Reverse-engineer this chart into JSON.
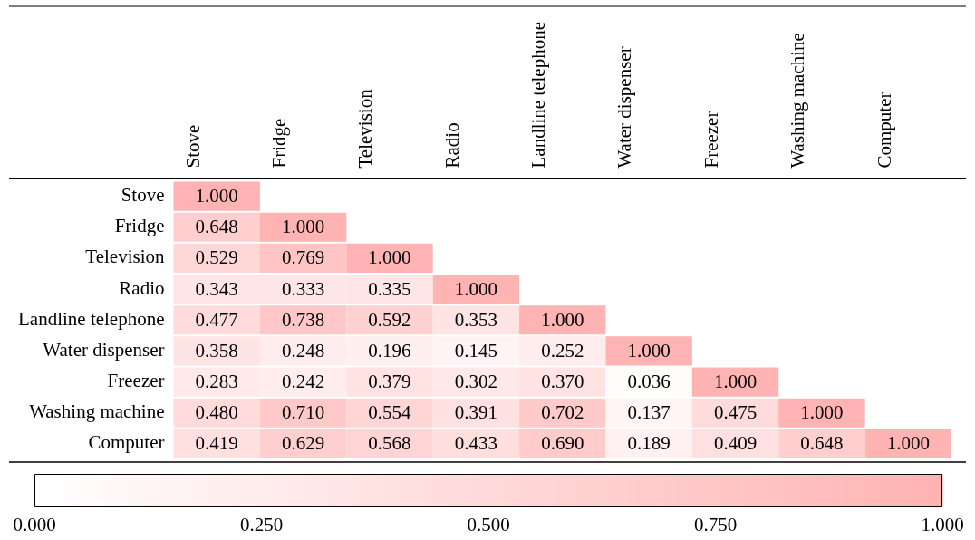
{
  "chart_data": {
    "type": "heatmap",
    "categories": [
      "Stove",
      "Fridge",
      "Television",
      "Radio",
      "Landline telephone",
      "Water dispenser",
      "Freezer",
      "Washing machine",
      "Computer"
    ],
    "y_categories": [
      "Stove",
      "Fridge",
      "Television",
      "Radio",
      "Landline telephone",
      "Water dispenser",
      "Freezer",
      "Washing machine",
      "Computer"
    ],
    "cells": [
      [
        1.0,
        null,
        null,
        null,
        null,
        null,
        null,
        null,
        null
      ],
      [
        0.648,
        1.0,
        null,
        null,
        null,
        null,
        null,
        null,
        null
      ],
      [
        0.529,
        0.769,
        1.0,
        null,
        null,
        null,
        null,
        null,
        null
      ],
      [
        0.343,
        0.333,
        0.335,
        1.0,
        null,
        null,
        null,
        null,
        null
      ],
      [
        0.477,
        0.738,
        0.592,
        0.353,
        1.0,
        null,
        null,
        null,
        null
      ],
      [
        0.358,
        0.248,
        0.196,
        0.145,
        0.252,
        1.0,
        null,
        null,
        null
      ],
      [
        0.283,
        0.242,
        0.379,
        0.302,
        0.37,
        0.036,
        1.0,
        null,
        null
      ],
      [
        0.48,
        0.71,
        0.554,
        0.391,
        0.702,
        0.137,
        0.475,
        1.0,
        null
      ],
      [
        0.419,
        0.629,
        0.568,
        0.433,
        0.69,
        0.189,
        0.409,
        0.648,
        1.0
      ]
    ],
    "cell_labels": [
      [
        "1.000",
        null,
        null,
        null,
        null,
        null,
        null,
        null,
        null
      ],
      [
        "0.648",
        "1.000",
        null,
        null,
        null,
        null,
        null,
        null,
        null
      ],
      [
        "0.529",
        "0.769",
        "1.000",
        null,
        null,
        null,
        null,
        null,
        null
      ],
      [
        "0.343",
        "0.333",
        "0.335",
        "1.000",
        null,
        null,
        null,
        null,
        null
      ],
      [
        "0.477",
        "0.738",
        "0.592",
        "0.353",
        "1.000",
        null,
        null,
        null,
        null
      ],
      [
        "0.358",
        "0.248",
        "0.196",
        "0.145",
        "0.252",
        "1.000",
        null,
        null,
        null
      ],
      [
        "0.283",
        "0.242",
        "0.379",
        "0.302",
        "0.370",
        "0.036",
        "1.000",
        null,
        null
      ],
      [
        "0.480",
        "0.710",
        "0.554",
        "0.391",
        "0.702",
        "0.137",
        "0.475",
        "1.000",
        null
      ],
      [
        "0.419",
        "0.629",
        "0.568",
        "0.433",
        "0.690",
        "0.189",
        "0.409",
        "0.648",
        "1.000"
      ]
    ],
    "clim": [
      0,
      1
    ],
    "cticks": [
      {
        "value": 0,
        "label": "0.000"
      },
      {
        "value": 0.25,
        "label": "0.250"
      },
      {
        "value": 0.5,
        "label": "0.500"
      },
      {
        "value": 0.75,
        "label": "0.750"
      },
      {
        "value": 1,
        "label": "1.000"
      }
    ]
  }
}
